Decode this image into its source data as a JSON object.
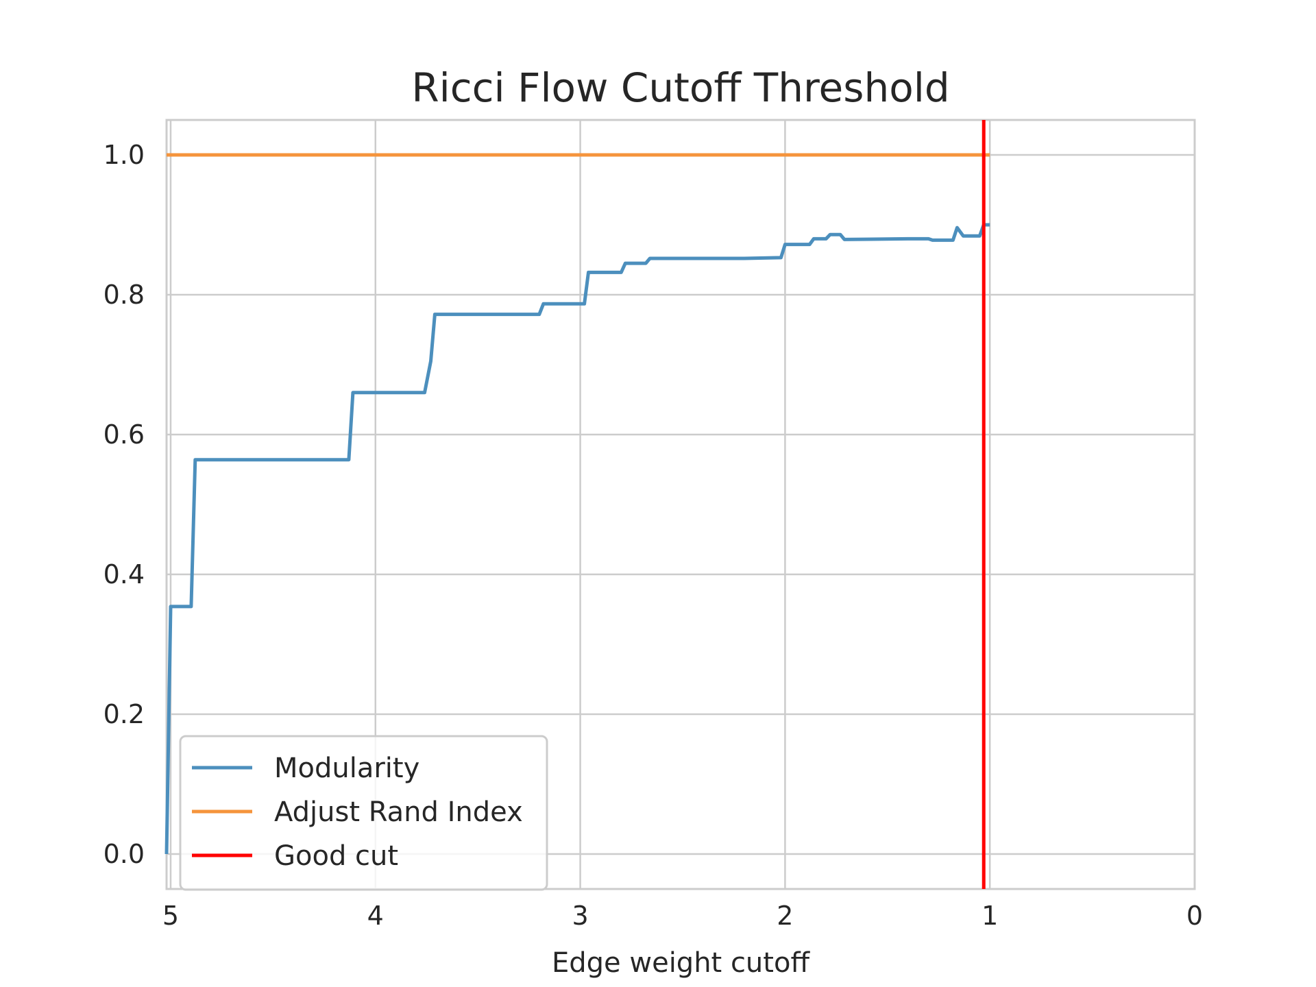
{
  "chart_data": {
    "type": "line",
    "title": "Ricci Flow Cutoff Threshold",
    "xlabel": "Edge weight cutoff",
    "ylabel": "",
    "xlim": [
      5.02,
      0.0
    ],
    "ylim": [
      -0.05,
      1.05
    ],
    "x_reversed": true,
    "grid": true,
    "legend_position": "lower-left",
    "xticks": [
      5,
      4,
      3,
      2,
      1,
      0
    ],
    "xtick_labels": [
      "5",
      "4",
      "3",
      "2",
      "1",
      "0"
    ],
    "yticks": [
      0.0,
      0.2,
      0.4,
      0.6,
      0.8,
      1.0
    ],
    "ytick_labels": [
      "0.0",
      "0.2",
      "0.4",
      "0.6",
      "0.8",
      "1.0"
    ],
    "series": [
      {
        "name": "Modularity",
        "color": "#4c8fbd",
        "x": [
          5.02,
          5.0,
          4.9,
          4.88,
          4.13,
          4.11,
          3.76,
          3.73,
          3.71,
          3.2,
          3.18,
          2.98,
          2.96,
          2.8,
          2.78,
          2.68,
          2.66,
          2.2,
          2.02,
          2.0,
          1.88,
          1.86,
          1.8,
          1.78,
          1.73,
          1.71,
          1.4,
          1.3,
          1.28,
          1.18,
          1.16,
          1.13,
          1.05,
          1.03,
          1.0
        ],
        "values": [
          0.0,
          0.354,
          0.354,
          0.564,
          0.564,
          0.66,
          0.66,
          0.705,
          0.772,
          0.772,
          0.787,
          0.787,
          0.832,
          0.832,
          0.845,
          0.845,
          0.852,
          0.852,
          0.853,
          0.872,
          0.872,
          0.88,
          0.88,
          0.886,
          0.886,
          0.879,
          0.88,
          0.88,
          0.878,
          0.878,
          0.896,
          0.884,
          0.884,
          0.9,
          0.9
        ]
      },
      {
        "name": "Adjust Rand Index",
        "color": "#f5943c",
        "x": [
          5.02,
          1.0
        ],
        "values": [
          1.0,
          1.0
        ]
      }
    ],
    "vlines": [
      {
        "name": "Good cut",
        "color": "#ff0000",
        "x": 1.03
      }
    ]
  }
}
